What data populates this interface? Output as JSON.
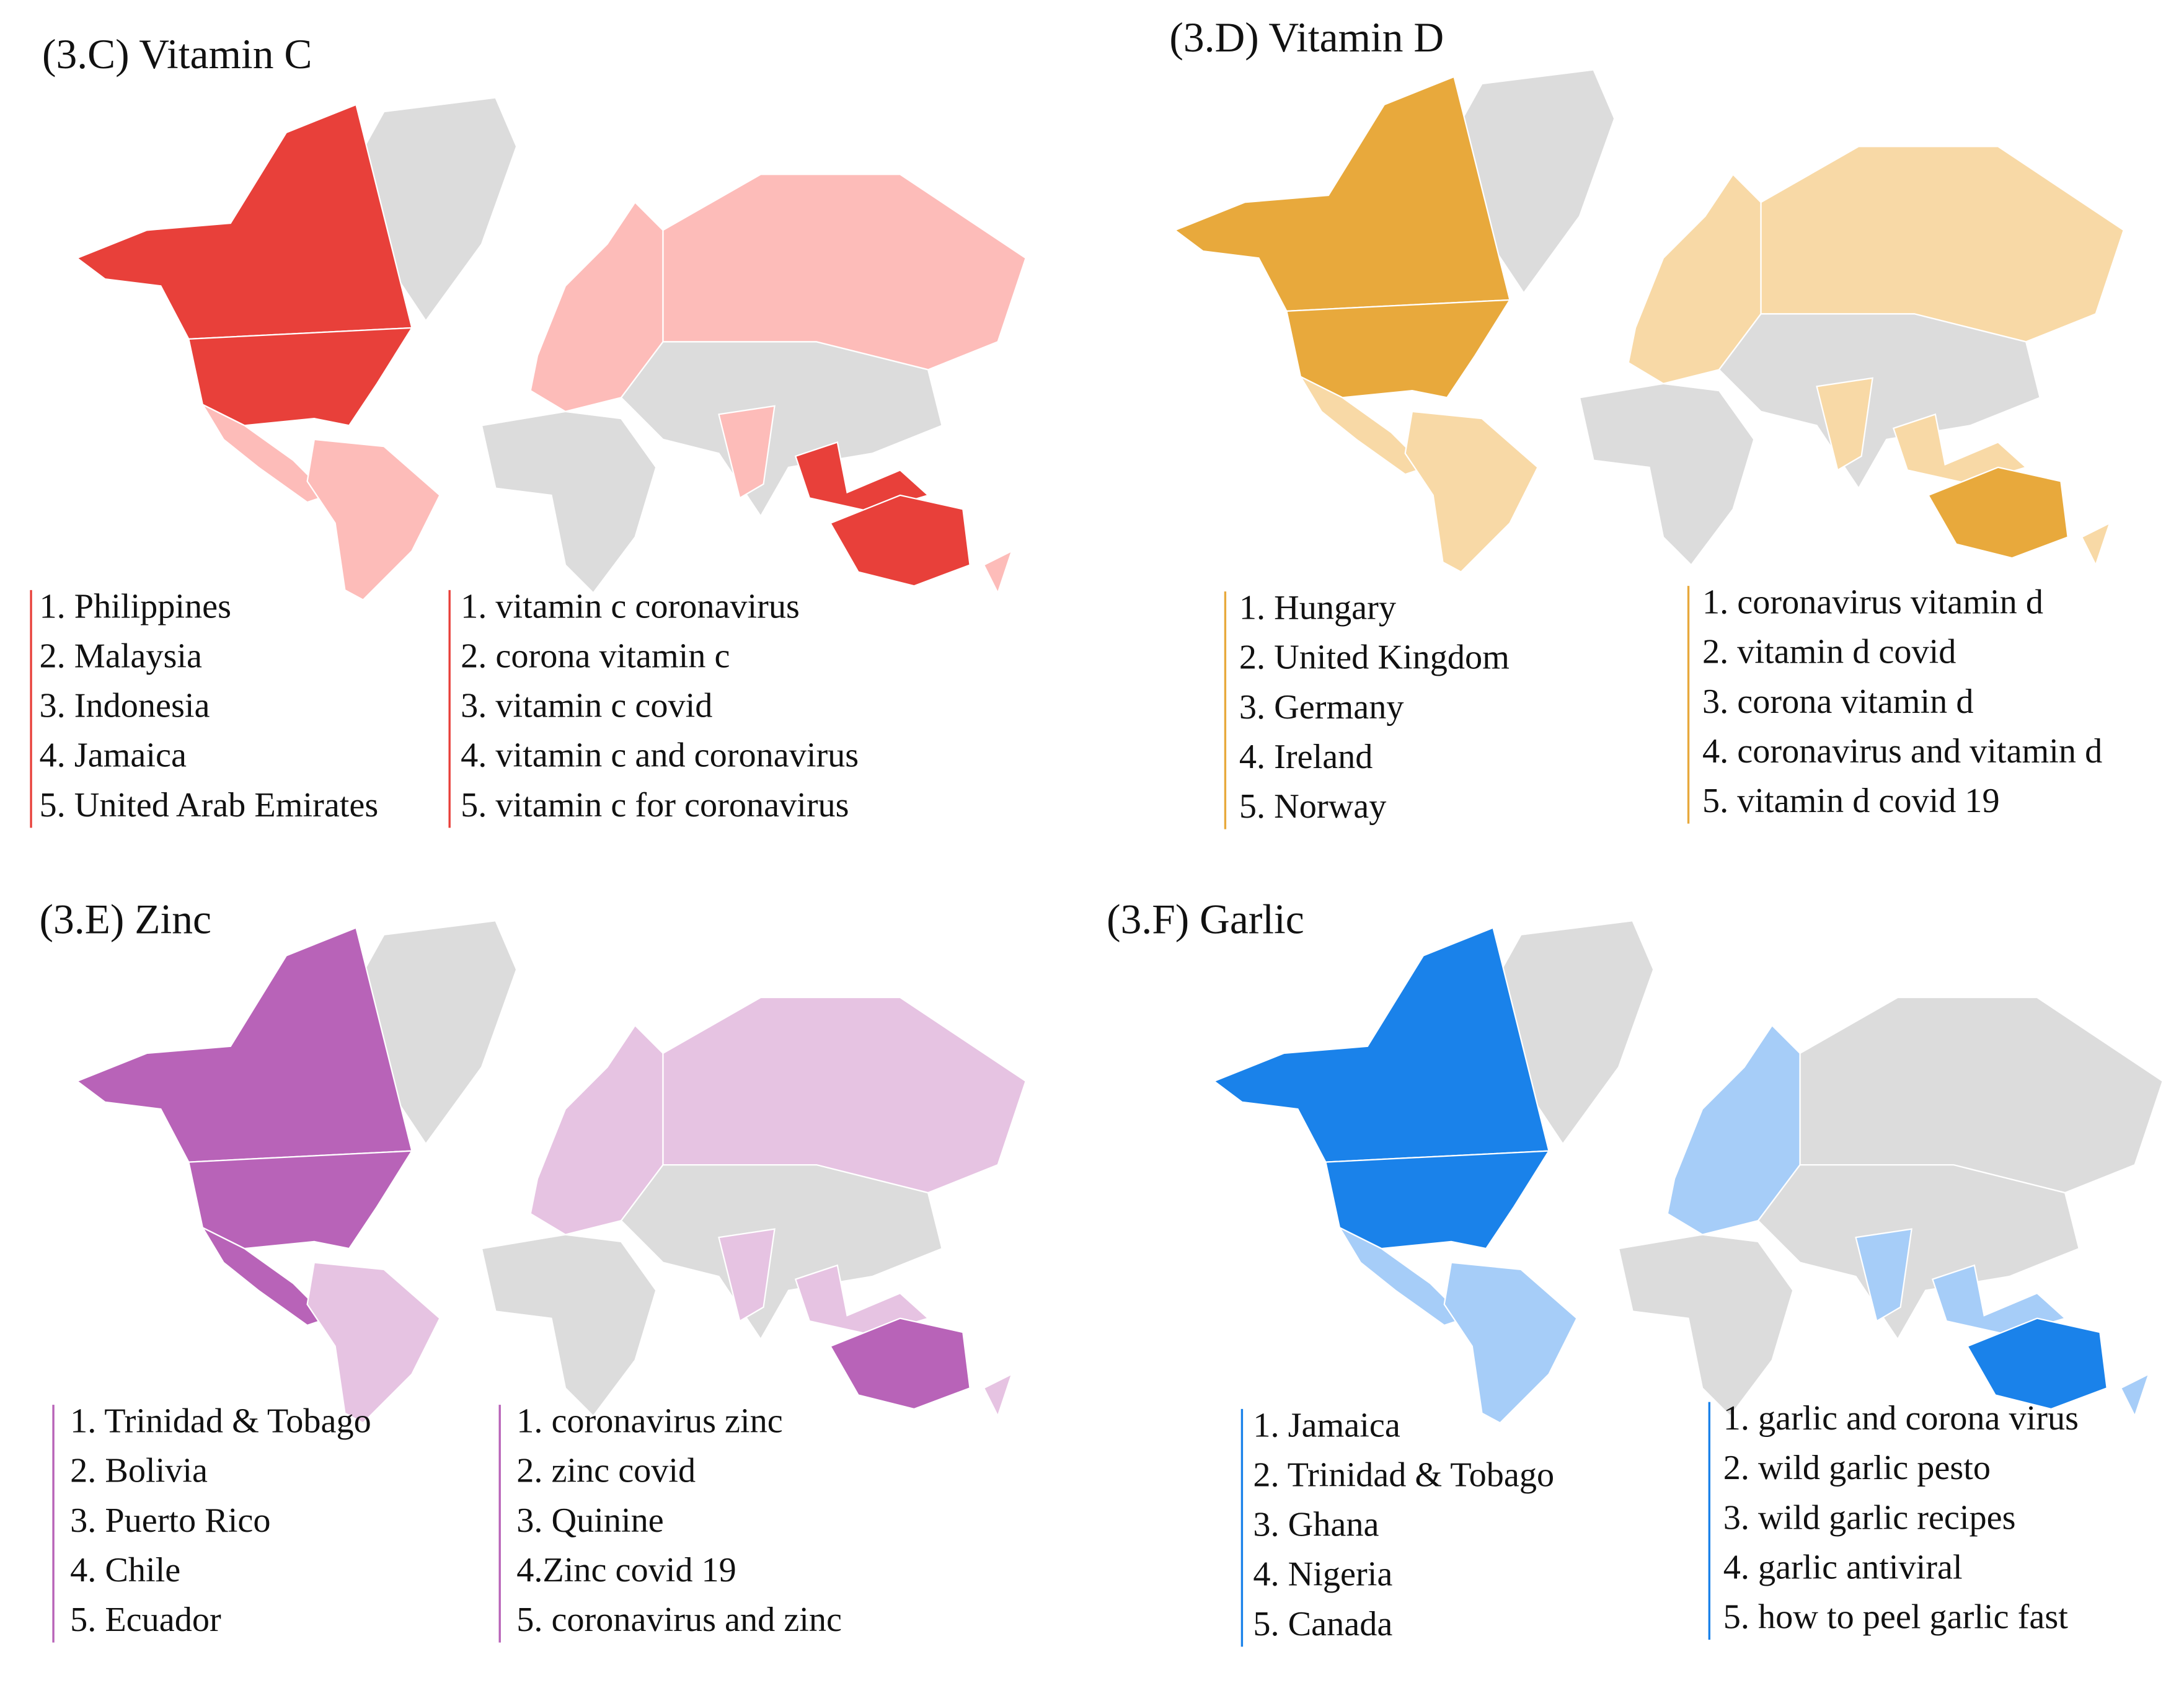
{
  "panels": [
    {
      "title": "(3.C) Vitamin C",
      "color": "#e8403a",
      "light_color": "#fdbcb9",
      "countries": [
        "1. Philippines",
        "2. Malaysia",
        "3. Indonesia",
        "4. Jamaica",
        "5. United Arab Emirates"
      ],
      "terms": [
        "1. vitamin c coronavirus",
        "2. corona vitamin c",
        "3. vitamin c covid",
        "4. vitamin c and coronavirus",
        "5. vitamin c for coronavirus"
      ]
    },
    {
      "title": "(3.D) Vitamin D",
      "color": "#e8a93c",
      "light_color": "#f8d9a6",
      "countries": [
        "1. Hungary",
        "2. United Kingdom",
        "3. Germany",
        "4. Ireland",
        "5. Norway"
      ],
      "terms": [
        "1. coronavirus vitamin d",
        "2. vitamin d covid",
        "3. corona vitamin d",
        "4. coronavirus and vitamin d",
        "5. vitamin d covid 19"
      ]
    },
    {
      "title": "(3.E) Zinc",
      "color": "#b863b8",
      "light_color": "#e6c3e2",
      "countries": [
        "1. Trinidad & Tobago",
        "2. Bolivia",
        "3. Puerto Rico",
        "4. Chile",
        "5. Ecuador"
      ],
      "terms": [
        "1. coronavirus zinc",
        "2. zinc covid",
        "3. Quinine",
        "4.Zinc covid 19",
        "5. coronavirus and zinc"
      ]
    },
    {
      "title": "(3.F) Garlic",
      "color": "#1a82ea",
      "light_color": "#a6cdf8",
      "countries": [
        "1. Jamaica",
        "2. Trinidad & Tobago",
        "3. Ghana",
        "4. Nigeria",
        "5. Canada"
      ],
      "terms": [
        "1. garlic and corona virus",
        "2. wild garlic pesto",
        "3. wild garlic recipes",
        "4. garlic antiviral",
        "5. how to peel garlic fast"
      ]
    }
  ]
}
